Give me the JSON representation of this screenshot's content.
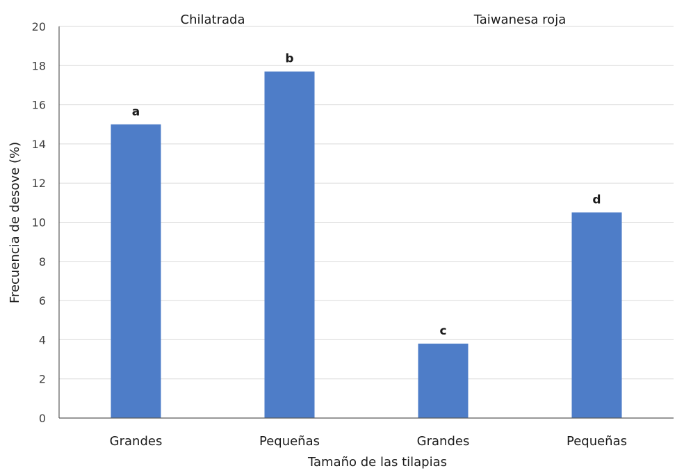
{
  "chart_data": {
    "type": "bar",
    "groups": [
      "Chilatrada",
      "Taiwanesa roja"
    ],
    "categories": [
      "Grandes",
      "Pequeñas",
      "Grandes",
      "Pequeñas"
    ],
    "category_groups": [
      0,
      0,
      1,
      1
    ],
    "values": [
      15.0,
      17.7,
      3.8,
      10.5
    ],
    "data_labels": [
      "a",
      "b",
      "c",
      "d"
    ],
    "xlabel": "Tamaño de las tilapias",
    "ylabel": "Frecuencia de desove (%)",
    "ylim": [
      0,
      20
    ],
    "yticks": [
      0,
      2,
      4,
      6,
      8,
      10,
      12,
      14,
      16,
      18,
      20
    ],
    "grid": true,
    "colors": {
      "bar": "#4e7dc8",
      "grid": "#d9d9d9",
      "axis": "#595959"
    }
  }
}
